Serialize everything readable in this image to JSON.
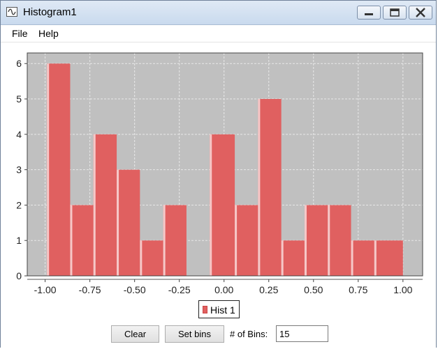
{
  "window": {
    "title": "Histogram1"
  },
  "menu": {
    "items": [
      {
        "label": "File"
      },
      {
        "label": "Help"
      }
    ]
  },
  "chart_data": {
    "type": "bar",
    "title": "",
    "xlabel": "",
    "ylabel": "",
    "x_ticks": [
      "-1.00",
      "-0.75",
      "-0.50",
      "-0.25",
      "0.00",
      "0.25",
      "0.50",
      "0.75",
      "1.00"
    ],
    "y_ticks": [
      "0",
      "1",
      "2",
      "3",
      "4",
      "5",
      "6"
    ],
    "xlim": [
      -1.1,
      1.11
    ],
    "ylim": [
      0,
      6.3
    ],
    "grid": true,
    "legend_position": "bottom-center",
    "series": [
      {
        "name": "Hist 1",
        "color": "#e06060",
        "bins": [
          {
            "start": -0.99,
            "end": -0.86,
            "count": 6
          },
          {
            "start": -0.86,
            "end": -0.73,
            "count": 2
          },
          {
            "start": -0.73,
            "end": -0.6,
            "count": 4
          },
          {
            "start": -0.6,
            "end": -0.47,
            "count": 3
          },
          {
            "start": -0.47,
            "end": -0.34,
            "count": 1
          },
          {
            "start": -0.34,
            "end": -0.21,
            "count": 2
          },
          {
            "start": -0.21,
            "end": -0.08,
            "count": 0
          },
          {
            "start": -0.08,
            "end": 0.06,
            "count": 4
          },
          {
            "start": 0.06,
            "end": 0.19,
            "count": 2
          },
          {
            "start": 0.19,
            "end": 0.32,
            "count": 5
          },
          {
            "start": 0.32,
            "end": 0.45,
            "count": 1
          },
          {
            "start": 0.45,
            "end": 0.58,
            "count": 2
          },
          {
            "start": 0.58,
            "end": 0.71,
            "count": 2
          },
          {
            "start": 0.71,
            "end": 0.84,
            "count": 1
          },
          {
            "start": 0.84,
            "end": 1.0,
            "count": 1
          }
        ]
      }
    ],
    "plot_background": "#c0c0c0"
  },
  "legend": {
    "label": "Hist 1"
  },
  "controls": {
    "clear_label": "Clear",
    "setbins_label": "Set bins",
    "bins_label": "# of Bins:",
    "bins_value": "15"
  }
}
